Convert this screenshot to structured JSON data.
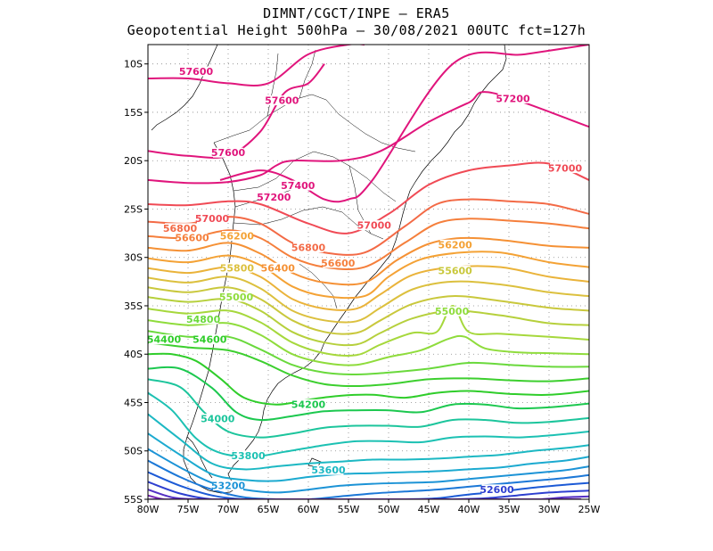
{
  "header": {
    "line1": "DIMNT/CGCT/INPE —  ERA5",
    "line2": "Geopotential Height 500hPa —  30/08/2021 00UTC fct=127h"
  },
  "axes": {
    "lon_ticks": [
      "80W",
      "75W",
      "70W",
      "65W",
      "60W",
      "55W",
      "50W",
      "45W",
      "40W",
      "35W",
      "30W",
      "25W"
    ],
    "lat_ticks": [
      "10S",
      "15S",
      "20S",
      "25S",
      "30S",
      "35S",
      "40S",
      "45S",
      "50S",
      "55S"
    ]
  },
  "colors": {
    "frame": "#000000",
    "grid": "#888888",
    "coast": "#000000"
  },
  "chart_data": {
    "type": "contour-map",
    "title": "Geopotential Height 500hPa",
    "units": "gpm",
    "xlim": [
      -80,
      -25
    ],
    "ylim": [
      -55,
      -8
    ],
    "contour_interval": 200,
    "contours": [
      {
        "value": 57600,
        "color": "#e0157c",
        "lon": [
          -80,
          -75,
          -70,
          -65,
          -60,
          -55,
          -53
        ],
        "lat": [
          -11.5,
          -11.5,
          -12,
          -12,
          -9,
          -8,
          -8
        ]
      },
      {
        "value": 57600,
        "color": "#e0157c",
        "lon": [
          -80,
          -75,
          -70,
          -66,
          -63,
          -60,
          -58
        ],
        "lat": [
          -19,
          -19.5,
          -19.5,
          -17,
          -13,
          -12,
          -10
        ]
      },
      {
        "value": 57200,
        "color": "#e0157c",
        "lon": [
          -80,
          -75,
          -70,
          -66,
          -64,
          -62,
          -56,
          -51,
          -45,
          -40,
          -37,
          -25
        ],
        "lat": [
          -22,
          -22.3,
          -22.2,
          -21.5,
          -20.5,
          -20,
          -20,
          -19,
          -16,
          -14,
          -13,
          -16.5
        ]
      },
      {
        "value": 57400,
        "color": "#e0157c",
        "lon": [
          -71,
          -66,
          -62,
          -58,
          -55,
          -52,
          -42,
          -33,
          -25
        ],
        "lat": [
          -22,
          -21,
          -22,
          -24,
          -24,
          -22,
          -10,
          -9,
          -8
        ]
      },
      {
        "value": 57000,
        "color": "#f04a55",
        "lon": [
          -80,
          -75,
          -70,
          -66,
          -60,
          -55,
          -50,
          -45,
          -40,
          -35,
          -30,
          -25
        ],
        "lat": [
          -24.5,
          -24.6,
          -24.2,
          -24.5,
          -26.5,
          -27.5,
          -25.5,
          -22.5,
          -21,
          -20.5,
          -20.3,
          -22
        ]
      },
      {
        "value": 56800,
        "color": "#f36a46",
        "lon": [
          -80,
          -75,
          -70,
          -66,
          -62,
          -58,
          -53,
          -48,
          -44,
          -40,
          -35,
          -30,
          -25
        ],
        "lat": [
          -26.3,
          -26.5,
          -25.8,
          -26.5,
          -28.5,
          -29.5,
          -29.5,
          -26.8,
          -24.5,
          -24,
          -24.2,
          -24.5,
          -25.5
        ]
      },
      {
        "value": 56600,
        "color": "#f57f3c",
        "lon": [
          -80,
          -75,
          -70,
          -66,
          -62,
          -58,
          -53,
          -48,
          -44,
          -40,
          -35,
          -30,
          -25
        ],
        "lat": [
          -27.8,
          -28,
          -27.2,
          -28,
          -30,
          -31,
          -31,
          -28.5,
          -26.5,
          -26,
          -26.2,
          -26.5,
          -27
        ]
      },
      {
        "value": 56400,
        "color": "#f59135",
        "lon": [
          -80,
          -75,
          -70,
          -66,
          -62,
          -58,
          -53,
          -49,
          -45,
          -41,
          -36,
          -30,
          -25
        ],
        "lat": [
          -29,
          -29.3,
          -28.5,
          -29.6,
          -31.6,
          -32.6,
          -32.6,
          -30.3,
          -28.6,
          -28,
          -28.2,
          -28.8,
          -29
        ]
      },
      {
        "value": 56200,
        "color": "#f4a235",
        "lon": [
          -80,
          -75,
          -70,
          -66,
          -62,
          -58,
          -53,
          -50,
          -46,
          -41,
          -36,
          -30,
          -25
        ],
        "lat": [
          -30.1,
          -30.5,
          -29.8,
          -30.8,
          -33,
          -34,
          -34,
          -32,
          -30.2,
          -29.5,
          -29.5,
          -30.5,
          -31
        ]
      },
      {
        "value": 56000,
        "color": "#eab33a",
        "lon": [
          -80,
          -75,
          -70,
          -66,
          -62,
          -58,
          -54,
          -51,
          -47,
          -42,
          -36,
          -30,
          -25
        ],
        "lat": [
          -31.1,
          -31.6,
          -31,
          -32,
          -34.3,
          -35.3,
          -35.3,
          -33.8,
          -31.8,
          -31,
          -31,
          -32,
          -32.5
        ]
      },
      {
        "value": 55800,
        "color": "#dcc03e",
        "lon": [
          -80,
          -75,
          -70,
          -66,
          -62,
          -58,
          -54,
          -51,
          -47,
          -42,
          -36,
          -30,
          -25
        ],
        "lat": [
          -32.1,
          -32.6,
          -32,
          -33.2,
          -35.5,
          -36.5,
          -36.6,
          -35.2,
          -33.3,
          -32.5,
          -32.8,
          -33.6,
          -34
        ]
      },
      {
        "value": 55600,
        "color": "#c9c83c",
        "lon": [
          -80,
          -75,
          -70,
          -66,
          -62,
          -58,
          -54,
          -51,
          -47,
          -42,
          -36,
          -30,
          -25
        ],
        "lat": [
          -33.1,
          -33.6,
          -33.1,
          -34.3,
          -36.5,
          -37.7,
          -37.8,
          -36.5,
          -34.8,
          -34,
          -34.5,
          -35.2,
          -35.5
        ]
      },
      {
        "value": 55400,
        "color": "#b6d03c",
        "lon": [
          -80,
          -75,
          -70,
          -66,
          -62,
          -58,
          -54,
          -51,
          -47,
          -42,
          -36,
          -30,
          -25
        ],
        "lat": [
          -34.1,
          -34.6,
          -34.3,
          -35.5,
          -37.7,
          -38.8,
          -39,
          -37.8,
          -36.3,
          -35.5,
          -36,
          -36.8,
          -37
        ]
      },
      {
        "value": 55200,
        "color": "#a6d83c",
        "lon": [
          -80,
          -75,
          -70,
          -66,
          -62,
          -58,
          -54,
          -51,
          -47,
          -44,
          -42,
          -40,
          -36,
          -30,
          -25
        ],
        "lat": [
          -35.3,
          -35.8,
          -35.5,
          -36.7,
          -38.8,
          -39.9,
          -40.1,
          -39,
          -37.8,
          -37.7,
          -35,
          -37.7,
          -37.9,
          -38.2,
          -38.5
        ]
      },
      {
        "value": 55000,
        "color": "#8fdc3c",
        "lon": [
          -80,
          -75,
          -70,
          -66,
          -62,
          -58,
          -54,
          -50,
          -46,
          -42.5,
          -40.5,
          -38,
          -34,
          -30,
          -25
        ],
        "lat": [
          -36.5,
          -37,
          -36.8,
          -38,
          -40,
          -40.9,
          -41.1,
          -40.3,
          -39.6,
          -38.4,
          -38.2,
          -39.4,
          -39.8,
          -39.9,
          -40
        ]
      },
      {
        "value": 54800,
        "color": "#6ad93c",
        "lon": [
          -80,
          -75,
          -70,
          -66,
          -62,
          -58,
          -54,
          -50,
          -45,
          -40,
          -35,
          -30,
          -25
        ],
        "lat": [
          -37.6,
          -38.2,
          -38.2,
          -39.5,
          -41.1,
          -41.9,
          -42.1,
          -41.9,
          -41.5,
          -40.9,
          -41.1,
          -41.3,
          -41.3
        ]
      },
      {
        "value": 54600,
        "color": "#3ccf2e",
        "lon": [
          -80,
          -75,
          -70,
          -66,
          -62,
          -58,
          -54,
          -50,
          -45,
          -40,
          -35,
          -30,
          -25
        ],
        "lat": [
          -38.8,
          -39.3,
          -39.6,
          -40.7,
          -42.2,
          -43.1,
          -43.3,
          -43.1,
          -42.6,
          -42.5,
          -42.7,
          -42.8,
          -42.5
        ]
      },
      {
        "value": 54400,
        "color": "#2fcd2a",
        "lon": [
          -80,
          -77,
          -74,
          -71,
          -68,
          -64,
          -60,
          -56,
          -52,
          -48,
          -44,
          -40,
          -35,
          -30,
          -25
        ],
        "lat": [
          -40,
          -40,
          -40.7,
          -42.5,
          -44.5,
          -45.2,
          -44.7,
          -44.3,
          -44.2,
          -44.5,
          -44,
          -43.8,
          -44.1,
          -44.2,
          -43.8
        ]
      },
      {
        "value": 54200,
        "color": "#1cc84f",
        "lon": [
          -80,
          -76,
          -72,
          -69,
          -66,
          -62,
          -58,
          -54,
          -50,
          -46,
          -42,
          -38,
          -34,
          -30,
          -25
        ],
        "lat": [
          -41.5,
          -41.5,
          -43.5,
          -46,
          -46.8,
          -46.4,
          -45.9,
          -45.8,
          -45.8,
          -46,
          -45.2,
          -45.2,
          -45.6,
          -45.5,
          -45.1
        ]
      },
      {
        "value": 54000,
        "color": "#1cc59c",
        "lon": [
          -80,
          -76,
          -73,
          -70,
          -66,
          -62,
          -58,
          -54,
          -50,
          -46,
          -42,
          -38,
          -34,
          -30,
          -25
        ],
        "lat": [
          -42.6,
          -43.4,
          -46,
          -48,
          -48.6,
          -48.2,
          -47.6,
          -47.4,
          -47.4,
          -47.5,
          -46.8,
          -46.8,
          -47.1,
          -47,
          -46.6
        ]
      },
      {
        "value": 53800,
        "color": "#1cc1b3",
        "lon": [
          -80,
          -77,
          -74,
          -71,
          -67,
          -63,
          -58,
          -54,
          -50,
          -46,
          -42,
          -38,
          -34,
          -30,
          -25
        ],
        "lat": [
          -44,
          -45.8,
          -48.7,
          -50.2,
          -50.6,
          -50.1,
          -49.4,
          -49,
          -49,
          -49.1,
          -48.6,
          -48.5,
          -48.6,
          -48.4,
          -48
        ]
      },
      {
        "value": 53600,
        "color": "#1cb8c3",
        "lon": [
          -80,
          -76,
          -72,
          -68,
          -64,
          -60,
          -56,
          -52,
          -48,
          -44,
          -40,
          -36,
          -32,
          -28,
          -25
        ],
        "lat": [
          -46.2,
          -48.8,
          -51.3,
          -51.9,
          -51.6,
          -51.3,
          -51.1,
          -50.9,
          -50.9,
          -50.8,
          -50.6,
          -50.4,
          -50,
          -49.7,
          -49.4
        ]
      },
      {
        "value": 53400,
        "color": "#1caad0",
        "lon": [
          -80,
          -76,
          -72,
          -68,
          -64,
          -60,
          -56,
          -52,
          -48,
          -44,
          -40,
          -36,
          -32,
          -28,
          -25
        ],
        "lat": [
          -48.2,
          -50.4,
          -52.4,
          -53,
          -53.1,
          -52.7,
          -52.4,
          -52.3,
          -52.2,
          -52.1,
          -51.9,
          -51.7,
          -51.3,
          -51,
          -50.6
        ]
      },
      {
        "value": 53200,
        "color": "#1c93d6",
        "lon": [
          -80,
          -76,
          -72,
          -68,
          -64,
          -60,
          -56,
          -52,
          -48,
          -44,
          -40,
          -36,
          -32,
          -28,
          -25
        ],
        "lat": [
          -49.8,
          -51.7,
          -53.3,
          -54,
          -54.3,
          -54,
          -53.6,
          -53.4,
          -53.3,
          -53.2,
          -52.9,
          -52.6,
          -52.3,
          -52,
          -51.6
        ]
      },
      {
        "value": 53000,
        "color": "#1c78d7",
        "lon": [
          -80,
          -76,
          -72,
          -68,
          -64,
          -60,
          -56,
          -52,
          -48,
          -44,
          -40,
          -36,
          -32,
          -28,
          -25
        ],
        "lat": [
          -51,
          -52.7,
          -54,
          -54.8,
          -55,
          -55,
          -54.7,
          -54.4,
          -54.2,
          -54,
          -53.7,
          -53.4,
          -53.1,
          -52.8,
          -52.5
        ]
      },
      {
        "value": 52800,
        "color": "#1c5ad6",
        "lon": [
          -80,
          -76,
          -72,
          -68,
          -64,
          -60,
          -56,
          -52,
          -48,
          -44,
          -40,
          -36,
          -32,
          -28,
          -25
        ],
        "lat": [
          -52.2,
          -53.6,
          -54.6,
          -55,
          -55,
          -55,
          -55,
          -55,
          -55,
          -54.9,
          -54.5,
          -54.2,
          -53.8,
          -53.5,
          -53.3
        ]
      },
      {
        "value": 52600,
        "color": "#2e3fd0",
        "lon": [
          -80,
          -76,
          -72,
          -68,
          -62,
          -48,
          -42,
          -38,
          -34,
          -30,
          -25
        ],
        "lat": [
          -53.2,
          -54.4,
          -55,
          -55,
          -55,
          -55,
          -55,
          -54.9,
          -54.6,
          -54.3,
          -54.1
        ]
      },
      {
        "value": 52400,
        "color": "#5530c4",
        "lon": [
          -80,
          -77,
          -74,
          -71,
          -34,
          -31,
          -28,
          -25
        ],
        "lat": [
          -54,
          -54.8,
          -55,
          -55,
          -55,
          -55,
          -54.8,
          -54.7
        ]
      },
      {
        "value": 52200,
        "color": "#7a28b6",
        "lon": [
          -80,
          -78,
          -76,
          -30,
          -28,
          -25
        ],
        "lat": [
          -54.6,
          -55,
          -55,
          -55,
          -55,
          -55.2
        ]
      }
    ],
    "labels": [
      {
        "text": "57600",
        "lon": -74.0,
        "lat": -11.0,
        "color": "#e0157c"
      },
      {
        "text": "57600",
        "lon": -63.3,
        "lat": -14.0,
        "color": "#e0157c"
      },
      {
        "text": "57600",
        "lon": -70.0,
        "lat": -19.4,
        "color": "#e0157c"
      },
      {
        "text": "57200",
        "lon": -34.5,
        "lat": -13.8,
        "color": "#e0157c"
      },
      {
        "text": "57400",
        "lon": -61.3,
        "lat": -22.8,
        "color": "#e0157c"
      },
      {
        "text": "57200",
        "lon": -64.3,
        "lat": -24.0,
        "color": "#e0157c"
      },
      {
        "text": "57000",
        "lon": -28.0,
        "lat": -21.0,
        "color": "#f04a55"
      },
      {
        "text": "57000",
        "lon": -72.0,
        "lat": -26.2,
        "color": "#f04a55"
      },
      {
        "text": "57000",
        "lon": -51.8,
        "lat": -26.9,
        "color": "#f04a55"
      },
      {
        "text": "56800",
        "lon": -76.0,
        "lat": -27.2,
        "color": "#f36a46"
      },
      {
        "text": "56800",
        "lon": -60.0,
        "lat": -29.2,
        "color": "#f36a46"
      },
      {
        "text": "56600",
        "lon": -74.5,
        "lat": -28.2,
        "color": "#f57f3c"
      },
      {
        "text": "56600",
        "lon": -56.3,
        "lat": -30.8,
        "color": "#f57f3c"
      },
      {
        "text": "56400",
        "lon": -63.8,
        "lat": -31.3,
        "color": "#f59135"
      },
      {
        "text": "56200",
        "lon": -68.9,
        "lat": -28.0,
        "color": "#f4a235"
      },
      {
        "text": "56200",
        "lon": -41.7,
        "lat": -28.9,
        "color": "#f4a235"
      },
      {
        "text": "55800",
        "lon": -68.9,
        "lat": -31.3,
        "color": "#dcc03e"
      },
      {
        "text": "55600",
        "lon": -41.7,
        "lat": -31.6,
        "color": "#c9c83c"
      },
      {
        "text": "55000",
        "lon": -69.0,
        "lat": -34.3,
        "color": "#8fdc3c"
      },
      {
        "text": "55000",
        "lon": -42.1,
        "lat": -35.8,
        "color": "#8fdc3c"
      },
      {
        "text": "54800",
        "lon": -73.1,
        "lat": -36.6,
        "color": "#6ad93c"
      },
      {
        "text": "54400",
        "lon": -78.0,
        "lat": -38.7,
        "color": "#2fcd2a"
      },
      {
        "text": "54600",
        "lon": -72.3,
        "lat": -38.7,
        "color": "#2fcd2a"
      },
      {
        "text": "54200",
        "lon": -60.0,
        "lat": -45.4,
        "color": "#1cc84f"
      },
      {
        "text": "54000",
        "lon": -71.3,
        "lat": -46.9,
        "color": "#1cc59c"
      },
      {
        "text": "53800",
        "lon": -67.5,
        "lat": -50.7,
        "color": "#1cc1b3"
      },
      {
        "text": "53600",
        "lon": -57.5,
        "lat": -52.2,
        "color": "#1cb8c3"
      },
      {
        "text": "53200",
        "lon": -70.0,
        "lat": -53.8,
        "color": "#1c93d6"
      },
      {
        "text": "52600",
        "lon": -36.5,
        "lat": -54.2,
        "color": "#2e3fd0"
      }
    ]
  }
}
